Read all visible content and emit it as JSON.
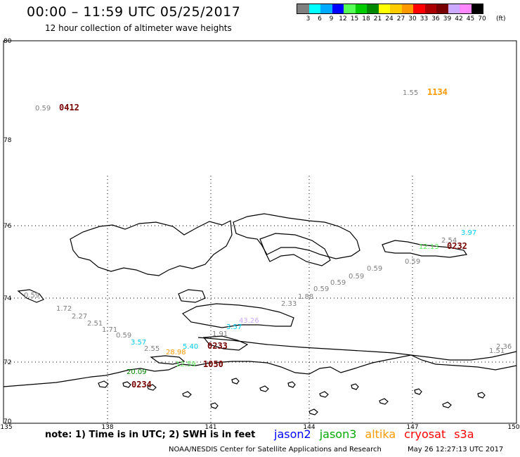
{
  "header": {
    "title": "00:00 – 11:59 UTC 05/25/2017",
    "subtitle": "12 hour collection of altimeter wave heights"
  },
  "legend": {
    "colors": [
      "#808080",
      "#00ffff",
      "#00aaff",
      "#0000ff",
      "#55ff55",
      "#00cc00",
      "#008800",
      "#ffff00",
      "#ffcc00",
      "#ff9900",
      "#ff0000",
      "#aa0000",
      "#770000",
      "#ccaaff",
      "#ff88ff",
      "#000000"
    ],
    "labels": [
      "3",
      "6",
      "9",
      "12",
      "15",
      "18",
      "21",
      "24",
      "27",
      "30",
      "33",
      "36",
      "39",
      "42",
      "45",
      "70"
    ],
    "unit": "(ft)"
  },
  "axes": {
    "lat_labels": [
      "80",
      "78",
      "76",
      "74",
      "72",
      "70"
    ],
    "lon_labels": [
      "135",
      "138",
      "141",
      "144",
      "147",
      "150"
    ]
  },
  "observations": {
    "times": [
      {
        "text": "0412",
        "color": "#770000"
      },
      {
        "text": "1134",
        "color": "#ff9900"
      },
      {
        "text": "0232",
        "color": "#770000"
      },
      {
        "text": "0233",
        "color": "#770000"
      },
      {
        "text": "1050",
        "color": "#770000"
      },
      {
        "text": "0234",
        "color": "#770000"
      }
    ],
    "heights": [
      {
        "text": "0.59",
        "color": "#808080"
      },
      {
        "text": "1.55",
        "color": "#808080"
      },
      {
        "text": "3.97",
        "color": "#00ccee"
      },
      {
        "text": "2.54",
        "color": "#808080"
      },
      {
        "text": "12.13",
        "color": "#55ee55"
      },
      {
        "text": "0.59",
        "color": "#808080"
      },
      {
        "text": "0.59",
        "color": "#808080"
      },
      {
        "text": "0.59",
        "color": "#808080"
      },
      {
        "text": "0.59",
        "color": "#808080"
      },
      {
        "text": "0.59",
        "color": "#808080"
      },
      {
        "text": "1.88",
        "color": "#808080"
      },
      {
        "text": "2.33",
        "color": "#808080"
      },
      {
        "text": "43.26",
        "color": "#ccaaff"
      },
      {
        "text": "3.57",
        "color": "#00ccee"
      },
      {
        "text": "1.91",
        "color": "#808080"
      },
      {
        "text": "1.72",
        "color": "#808080"
      },
      {
        "text": "2.27",
        "color": "#808080"
      },
      {
        "text": "2.51",
        "color": "#808080"
      },
      {
        "text": "1.71",
        "color": "#808080"
      },
      {
        "text": "0.59",
        "color": "#808080"
      },
      {
        "text": "3.57",
        "color": "#00ccee"
      },
      {
        "text": "2.55",
        "color": "#808080"
      },
      {
        "text": "5.40",
        "color": "#00ccee"
      },
      {
        "text": "28.98",
        "color": "#ff9900"
      },
      {
        "text": "12.59",
        "color": "#55ee55"
      },
      {
        "text": "20.09",
        "color": "#008800"
      },
      {
        "text": "2.36",
        "color": "#808080"
      },
      {
        "text": "1.51",
        "color": "#808080"
      },
      {
        "text": "0.59",
        "color": "#808080"
      }
    ]
  },
  "footer": {
    "note": "note: 1) Time is in UTC; 2) SWH is in feet",
    "satellites": [
      {
        "name": "jason2",
        "color": "#0000ff"
      },
      {
        "name": "jason3",
        "color": "#00aa00"
      },
      {
        "name": "altika",
        "color": "#ff9900"
      },
      {
        "name": "cryosat",
        "color": "#ff0000"
      },
      {
        "name": "s3a",
        "color": "#ff0000"
      }
    ],
    "credit": "NOAA/NESDIS Center for Satellite Applications and Research",
    "timestamp": "May 26 12:27:13 UTC 2017"
  }
}
